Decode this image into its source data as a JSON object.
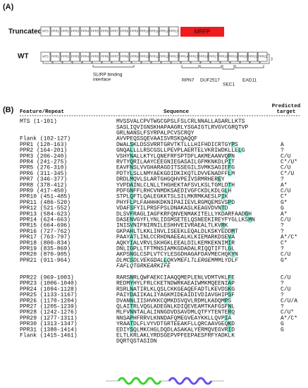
{
  "panel_a": {
    "label": "(A)",
    "truncated": {
      "label": "Truncated",
      "boxes": [
        "MTS",
        "PPR1",
        "PPR2",
        "PPR3",
        "PPR4",
        "PPR5",
        "PPR6",
        "PPR7",
        "PPR8",
        "PPR9",
        "PPR10",
        "PPR11",
        "PPR12",
        "PPR13"
      ],
      "tag": "MRFP"
    },
    "wt": {
      "label": "WT",
      "boxes": [
        "MTS",
        "PPR1",
        "PPR2",
        "PPR3",
        "PPR4",
        "PPR5",
        "PPR6",
        "PPR7",
        "PPR8",
        "PPR9",
        "PPR10",
        "PPR11",
        "PPR12",
        "PPR13",
        "PPR14",
        "PPR15",
        "PPR16",
        "PPR17",
        "PPR18",
        "PPR19",
        "PPR20",
        "PPR21",
        "PPR22"
      ],
      "end": "3"
    },
    "domains": [
      [
        "SLIRP binding",
        "interface"
      ],
      [
        "RPN7"
      ],
      [
        "DUF2517"
      ],
      [
        "SEC1"
      ],
      [
        "EAD11"
      ]
    ]
  },
  "panel_b": {
    "label": "(B)",
    "headers": [
      [
        "Feature/Repeat"
      ],
      [
        "Sequence"
      ],
      [
        "Predicted",
        "target"
      ]
    ],
    "rows": [
      {
        "feature": "MTS (1-101)",
        "sequence": [
          "MVSSVALCPVTWGCGPSLFSLCRLNNALLASARLLKTS",
          "SASLIQVIGNSKHAPAAGRLYSGAIGTLRVGVCGRQTVP",
          "GRLNANSLFSYRPALPCVSCRQY"
        ]
      },
      {
        "feature": "Flank (102-127)",
        "sequence": [
          "AVVPEQSSQEVAAISVRSKQAQQF"
        ]
      },
      {
        "feature": "PPR1  (128-163)",
        "sequence": [
          "DWALSKLDSSVRRTGRVTKTLLLHIFHDICRTGYPS"
        ],
        "target": "A"
      },
      {
        "feature": "PPR2  (164-201)",
        "sequence": [
          "GNQALLLLRSCGSLLPEVPLAERTELVKRIWDKLLELG"
        ],
        "target": "?"
      },
      {
        "feature": "PPR3  (206-240)",
        "sequence": [
          "VSHYNALLKTYLQNEFRFSPTDFLAKMEAANVQPN"
        ],
        "target": "C/U"
      },
      {
        "feature": "PPR4  (241-275)",
        "sequence": [
          "RVTYQRILAAYCEEGNIEGASAILGFMKNKDLPIT"
        ],
        "target": "C*/U*"
      },
      {
        "feature": "PPR5  (276-310)",
        "sequence": [
          "EAVFNSLVVGHARAGDITSSEGILSVMKSAGIEFG"
        ],
        "target": "C/U"
      },
      {
        "feature": "PPR6  (311-345)",
        "sequence": [
          "PDTYLSLLNMYAEKGDIDKIKQTLDVVENADFFLM"
        ],
        "target": "C*/U"
      },
      {
        "feature": "PPR7  (346-377)",
        "sequence": [
          "DRDLMQVLSLARTGHGQHVPEIVSRMRHEREY"
        ],
        "target": "?"
      },
      {
        "feature": "PPR8  (378-412)",
        "sequence": [
          "YVPDAINLCLNLLTHGHEKTAFSVLKSLTGMLDTH"
        ],
        "target": "A*"
      },
      {
        "feature": "PPR9  (417-450)",
        "sequence": [
          "PDFGNFFLRHCVNMDKSAEDIVGFCKDLKDLGLH"
        ],
        "target": "C/U"
      },
      {
        "feature": "PPR10 (451-485)",
        "sequence": [
          "STPLQFTLQALEGKKTSLSILMKRMKAESLPIK"
        ],
        "target": "C*"
      },
      {
        "feature": "PPR11 (486-520)",
        "sequence": [
          "PHYFLPLFAHHHKDKNIPAIIEVLRGMQEMSVSPD"
        ],
        "target": "G*"
      },
      {
        "feature": "PPR12 (521-552)",
        "sequence": [
          "VDAFSFYILPRSFPSLDNAKASLKEAGVDVNTD"
        ],
        "target": "G"
      },
      {
        "feature": "PPR13 (584-623)",
        "sequence": [
          "DLSVFRAGLIAGFKRFQNVENMAKITELLYKDARFAADGH"
        ],
        "target": "A*"
      },
      {
        "feature": "PPR14 (624-663)",
        "sequence": [
          "DASENVGYFLYNLIDSMSETELQSNEEKIREYFYGLLKSMN"
        ],
        "target": "C/U"
      },
      {
        "feature": "PPR15 (664-696)",
        "sequence": [
          "INISVNIFNIRNILESHHVEIVRAEALTLKVRK"
        ],
        "target": "?"
      },
      {
        "feature": "PPR16 (727-762)",
        "sequence": [
          "GKPAHLTLKKLINVLISEEKLEQALDLKSKYEDDMT"
        ],
        "target": "?"
      },
      {
        "feature": "PPR17 (763-797)",
        "sequence": [
          "PAAYATLINLCCRHDNAEEALKLKIEMARKDSEVA"
        ],
        "target": "A*/C*"
      },
      {
        "feature": "PPR18 (800-834)",
        "sequence": [
          "AQKYIALVRVLSKHGKLEEALDILKEMKEKNIMIR"
        ],
        "target": "C*"
      },
      {
        "feature": "PPR19 (835-869)",
        "sequence": [
          "DNLIGPLLTFTMNSIAMKGDADALRIQQTIFTLGL"
        ],
        "target": "?"
      },
      {
        "feature": "PPR20 (870-905)",
        "sequence": [
          "AKPSNGLCSPLVTCYLESGDHAGAFDAVMECHQKYN"
        ],
        "target": "C/U"
      },
      {
        "feature": "PPR21 (911-964)",
        "sequence": [
          "DLMCSDLVEKGDALLQKVMEFLTLERGEMMMLYDLF",
          "FAFLQTGRKEARKIFE"
        ],
        "target": "G*",
        "italic": true
      },
      {
        "feature": "PPR22 (969-1003)",
        "sequence": [
          "RARSNRLQWFAEKCIAAQQMEPLENLVDMTVKLFE"
        ],
        "target": "C/U"
      },
      {
        "feature": "PPR23 (1006-1040)",
        "sequence": [
          "REDMYHYLFRLCKETNDWRKAEAIWMKMQEENIAP"
        ],
        "target": "?"
      },
      {
        "feature": "PPR24 (1094-1128)",
        "sequence": [
          "RSRLNATIRLKLQSLCKKGEAQEFADTLKEVDSKG"
        ],
        "target": "C/U"
      },
      {
        "feature": "PPR25 (1133-1167)",
        "sequence": [
          "PAIYDAIIKALIYAGKMIDEAIDIVDIAVGHIPSF"
        ],
        "target": "?"
      },
      {
        "feature": "PPR26 (1170-1204)",
        "sequence": [
          "DVANNLIISHVKKCQMKDSVQVLRDMLKADQMPS"
        ],
        "target": "C/U/A"
      },
      {
        "feature": "PPR27 (1205-1239)",
        "sequence": [
          "QLAITRLVQGLADEGNLKDIQEVEAMTKAFGSFNL"
        ],
        "target": "?"
      },
      {
        "feature": "PPR28 (1242-1276)",
        "sequence": [
          "MLFVNNTALALINNGDVDSAVDMLQTFYTENTERQ"
        ],
        "target": "C/U*"
      },
      {
        "feature": "PPR29 (1277-1311)",
        "sequence": [
          "NNSAPHFRRVLKNNDAFQMEGVEAYKKLLQVPIA"
        ],
        "target": "A*/C*"
      },
      {
        "feature": "PPR30 (1313-1347)",
        "sequence": [
          "YRAATDLFLVYVDTGRTEEAKFLLQRCAAVGEQKD"
        ],
        "target": "G"
      },
      {
        "feature": "PPR31 (1380-1414)",
        "sequence": [
          "EDIYSQLMKCHGLDQDLASAKALYERMQVEGVRID"
        ],
        "target": "G"
      },
      {
        "feature": "Flank (1415-1461)",
        "sequence": [
          "ELTLKRLAKLYRDSGEPVPFEEPAESFRFYADKLK",
          "DQRTQSTASIDN"
        ]
      }
    ]
  }
}
